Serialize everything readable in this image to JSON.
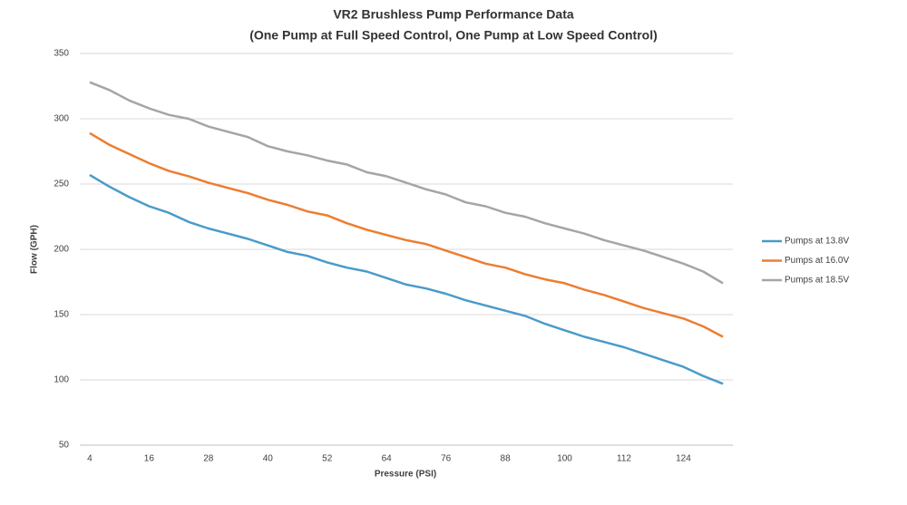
{
  "chart_data": {
    "type": "line",
    "title": "VR2 Brushless Pump Performance Data",
    "subtitle": "(One Pump at Full Speed Control, One Pump at Low Speed Control)",
    "x_label": "Pressure (PSI)",
    "y_label": "Flow (GPH)",
    "categories": [
      "4",
      null,
      null,
      "16",
      null,
      null,
      "28",
      null,
      null,
      "40",
      null,
      null,
      "52",
      null,
      null,
      "64",
      null,
      null,
      "76",
      null,
      null,
      "88",
      null,
      null,
      "100",
      null,
      null,
      "112",
      null,
      null,
      "124",
      null,
      null
    ],
    "series": [
      {
        "name": "Pumps at 13.8V",
        "color": "#4a9bc9",
        "values": [
          257,
          248,
          240,
          233,
          228,
          221,
          216,
          212,
          208,
          203,
          198,
          195,
          190,
          186,
          183,
          178,
          173,
          170,
          166,
          161,
          157,
          153,
          149,
          143,
          138,
          133,
          129,
          125,
          120,
          115,
          110,
          103,
          97
        ]
      },
      {
        "name": "Pumps at 16.0V",
        "color": "#ed7d31",
        "values": [
          289,
          280,
          273,
          266,
          260,
          256,
          251,
          247,
          243,
          238,
          234,
          229,
          226,
          220,
          215,
          211,
          207,
          204,
          199,
          194,
          189,
          186,
          181,
          177,
          174,
          169,
          165,
          160,
          155,
          151,
          147,
          141,
          133
        ]
      },
      {
        "name": "Pumps at 18.5V",
        "color": "#a5a5a5",
        "values": [
          328,
          322,
          314,
          308,
          303,
          300,
          294,
          290,
          286,
          279,
          275,
          272,
          268,
          265,
          259,
          256,
          251,
          246,
          242,
          236,
          233,
          228,
          225,
          220,
          216,
          212,
          207,
          203,
          199,
          194,
          189,
          183,
          174
        ]
      }
    ],
    "ylim": [
      50,
      350
    ],
    "yticks": [
      50,
      100,
      150,
      200,
      250,
      300,
      350
    ],
    "grid": true,
    "legend": "right"
  }
}
